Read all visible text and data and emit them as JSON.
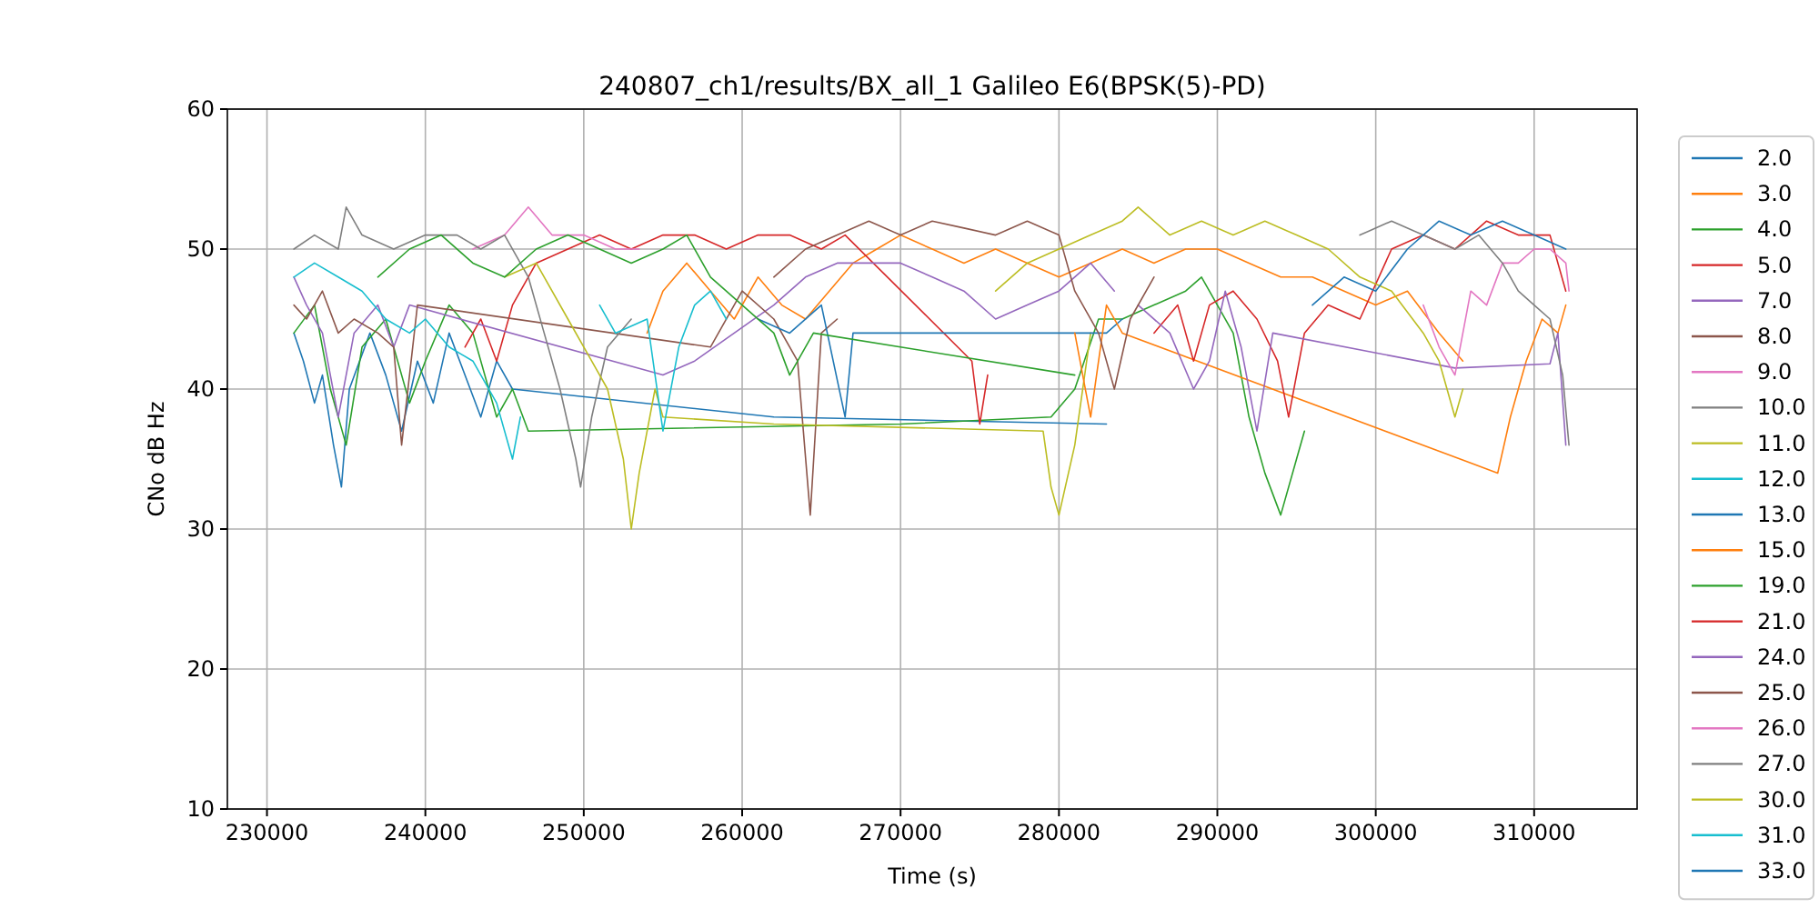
{
  "chart_data": {
    "type": "line",
    "title": "240807_ch1/results/BX_all_1 Galileo E6(BPSK(5)-PD)",
    "xlabel": "Time (s)",
    "ylabel": "CNo dB Hz",
    "xlim": [
      227500,
      316500
    ],
    "xticks": [
      230000,
      240000,
      250000,
      260000,
      270000,
      280000,
      290000,
      300000,
      310000
    ],
    "ylim": [
      10,
      60
    ],
    "yticks": [
      10,
      20,
      30,
      40,
      50,
      60
    ],
    "grid": true,
    "legend": "right",
    "line_style": "solid",
    "marker": "none",
    "series": [
      {
        "name": "2.0",
        "color": "#1f77b4",
        "x": [
          231700,
          232300,
          233000,
          233500,
          234200,
          234700,
          235200,
          236500,
          237500,
          238500,
          239500,
          240500,
          241500,
          243500,
          244500,
          245500,
          262000,
          283000
        ],
        "values": [
          44,
          42,
          39,
          41,
          36,
          33,
          40,
          44,
          41,
          37,
          42,
          39,
          44,
          38,
          42,
          40,
          38,
          37.5
        ]
      },
      {
        "name": "3.0",
        "color": "#ff7f0e",
        "x": [
          254000,
          255000,
          256500,
          258000,
          259500,
          261000,
          262500,
          264000,
          265500,
          267000,
          268500,
          270000,
          272000,
          274000,
          276000,
          278000,
          280000,
          282000,
          284000,
          286000,
          288000,
          290000,
          292000,
          294000,
          296000,
          298000,
          300000,
          302000,
          304000,
          305500
        ],
        "values": [
          44,
          47,
          49,
          47,
          45,
          48,
          46,
          45,
          47,
          49,
          50,
          51,
          50,
          49,
          50,
          49,
          48,
          49,
          50,
          49,
          50,
          50,
          49,
          48,
          48,
          47,
          46,
          47,
          44,
          42
        ]
      },
      {
        "name": "4.0",
        "color": "#2ca02c",
        "x": [
          231700,
          233000,
          234000,
          235000,
          236000,
          237500,
          239000,
          240000,
          241500,
          243000,
          244500,
          245500,
          246500,
          270000,
          279500,
          281000,
          282500,
          284000,
          286000,
          288000,
          289000,
          290000,
          291000,
          292000,
          293000,
          294000,
          295000,
          295500
        ],
        "values": [
          44,
          46,
          40,
          36,
          43,
          45,
          39,
          42,
          46,
          44,
          38,
          40,
          37,
          37.5,
          38,
          40,
          45,
          45,
          46,
          47,
          48,
          46,
          44,
          38,
          34,
          31,
          35,
          37
        ]
      },
      {
        "name": "5.0",
        "color": "#d62728",
        "x": [
          242500,
          243500,
          244500,
          245500,
          247000,
          249000,
          251000,
          253000,
          255000,
          257000,
          259000,
          261000,
          263000,
          265000,
          266500,
          274500,
          275000,
          275500
        ],
        "values": [
          43,
          45,
          42,
          46,
          49,
          50,
          51,
          50,
          51,
          51,
          50,
          51,
          51,
          50,
          51,
          42,
          37.5,
          41
        ]
      },
      {
        "name": "7.0",
        "color": "#9467bd",
        "x": [
          231700,
          232500,
          233500,
          234500,
          235500,
          237000,
          238000,
          239000,
          255000,
          257000,
          262000,
          264000,
          266000,
          268000,
          270000,
          272000,
          274000,
          276000,
          278000,
          280000,
          282000,
          283500
        ],
        "values": [
          48,
          46,
          44,
          38,
          44,
          46,
          43,
          46,
          41,
          42,
          46,
          48,
          49,
          49,
          49,
          48,
          47,
          45,
          46,
          47,
          49,
          47
        ]
      },
      {
        "name": "8.0",
        "color": "#8c564b",
        "x": [
          231700,
          232500,
          233500,
          234500,
          235500,
          237000,
          238000,
          238500,
          239500,
          258000,
          260000,
          262000,
          263500,
          264300,
          265000,
          266000
        ],
        "values": [
          46,
          45,
          47,
          44,
          45,
          44,
          43,
          36,
          46,
          43,
          47,
          45,
          42,
          31,
          44,
          45
        ]
      },
      {
        "name": "9.0",
        "color": "#e377c2",
        "x": [
          243000,
          245000,
          246500,
          248000,
          250000,
          252000,
          253500
        ],
        "values": [
          50,
          51,
          53,
          51,
          51,
          50,
          50
        ]
      },
      {
        "name": "10.0",
        "color": "#7f7f7f",
        "x": [
          231700,
          233000,
          234500,
          235000,
          236000,
          238000,
          240000,
          242000,
          243500,
          245000,
          246500,
          247500,
          248500,
          249500,
          249800,
          250500,
          251500,
          253000
        ],
        "values": [
          50,
          51,
          50,
          53,
          51,
          50,
          51,
          51,
          50,
          51,
          48,
          44,
          40,
          35,
          33,
          38,
          43,
          45
        ]
      },
      {
        "name": "11.0",
        "color": "#bcbd22",
        "x": [
          245000,
          247000,
          249000,
          250500,
          251500,
          252500,
          253000,
          253500,
          254500,
          255000,
          262000,
          279000,
          279500,
          280000,
          281000,
          282000
        ],
        "values": [
          48,
          49,
          45,
          42,
          40,
          35,
          30,
          34,
          40,
          38,
          37.5,
          37,
          33,
          31,
          36,
          44
        ]
      },
      {
        "name": "12.0",
        "color": "#17becf",
        "x": [
          231700,
          233000,
          234500,
          236000,
          237500,
          239000,
          240000,
          241500,
          243000,
          244500,
          245500,
          246000
        ],
        "values": [
          48,
          49,
          48,
          47,
          45,
          44,
          45,
          43,
          42,
          39,
          35,
          38
        ]
      },
      {
        "name": "13.0",
        "color": "#1f77b4",
        "x": [
          261000,
          263000,
          265000,
          266500,
          267000,
          283000,
          284000
        ],
        "values": [
          45,
          44,
          46,
          38,
          44,
          44,
          45
        ]
      },
      {
        "name": "15.0",
        "color": "#ff7f0e",
        "x": [
          281000,
          282000,
          283000,
          284000,
          307700,
          308500,
          309500,
          310500,
          311500,
          312000
        ],
        "values": [
          44,
          38,
          46,
          44,
          34,
          38,
          42,
          45,
          44,
          46
        ]
      },
      {
        "name": "19.0",
        "color": "#2ca02c",
        "x": [
          237000,
          239000,
          241000,
          243000,
          245000,
          247000,
          249000,
          251000,
          253000,
          255000,
          256500,
          258000,
          260000,
          262000,
          263000,
          264500,
          281000
        ],
        "values": [
          48,
          50,
          51,
          49,
          48,
          50,
          51,
          50,
          49,
          50,
          51,
          48,
          46,
          44,
          41,
          44,
          41
        ]
      },
      {
        "name": "21.0",
        "color": "#d62728",
        "x": [
          286000,
          287500,
          288500,
          289500,
          291000,
          292500,
          293800,
          294500,
          295500,
          297000,
          299000,
          301000,
          303000,
          305000,
          307000,
          309000,
          311000,
          312000
        ],
        "values": [
          44,
          46,
          42,
          46,
          47,
          45,
          42,
          38,
          44,
          46,
          45,
          50,
          51,
          50,
          52,
          51,
          51,
          47
        ]
      },
      {
        "name": "24.0",
        "color": "#9467bd",
        "x": [
          285000,
          287000,
          288500,
          289500,
          290500,
          291500,
          292500,
          293500,
          305000,
          311000,
          311500,
          312000
        ],
        "values": [
          46,
          44,
          40,
          42,
          47,
          43,
          37,
          44,
          41.5,
          41.8,
          44,
          36
        ]
      },
      {
        "name": "25.0",
        "color": "#8c564b",
        "x": [
          262000,
          264000,
          266000,
          268000,
          270000,
          272000,
          274000,
          276000,
          278000,
          280000,
          281000,
          282500,
          283500,
          284500,
          286000
        ],
        "values": [
          48,
          50,
          51,
          52,
          51,
          52,
          51.5,
          51,
          52,
          51,
          47,
          44,
          40,
          45,
          48
        ]
      },
      {
        "name": "26.0",
        "color": "#e377c2",
        "x": [
          303000,
          304000,
          305000,
          306000,
          307000,
          308000,
          309000,
          310000,
          311000,
          312000,
          312200
        ],
        "values": [
          46,
          43,
          41,
          47,
          46,
          49,
          49,
          50,
          50,
          49,
          47
        ]
      },
      {
        "name": "27.0",
        "color": "#7f7f7f",
        "x": [
          299000,
          301000,
          303000,
          305000,
          306500,
          308000,
          309000,
          310000,
          311000,
          311800,
          312200
        ],
        "values": [
          51,
          52,
          51,
          50,
          51,
          49,
          47,
          46,
          45,
          41,
          36
        ]
      },
      {
        "name": "30.0",
        "color": "#bcbd22",
        "x": [
          276000,
          278000,
          280000,
          282000,
          284000,
          285000,
          287000,
          289000,
          291000,
          293000,
          295000,
          297000,
          299000,
          301000,
          303000,
          304000,
          305000,
          305500
        ],
        "values": [
          47,
          49,
          50,
          51,
          52,
          53,
          51,
          52,
          51,
          52,
          51,
          50,
          48,
          47,
          44,
          42,
          38,
          40
        ]
      },
      {
        "name": "31.0",
        "color": "#17becf",
        "x": [
          251000,
          252000,
          254000,
          255000,
          256000,
          257000,
          258000,
          259000
        ],
        "values": [
          46,
          44,
          45,
          37,
          43,
          46,
          47,
          45
        ]
      },
      {
        "name": "33.0",
        "color": "#1f77b4",
        "x": [
          296000,
          298000,
          300000,
          302000,
          304000,
          306000,
          308000,
          310000,
          312000
        ],
        "values": [
          46,
          48,
          47,
          50,
          52,
          51,
          52,
          51,
          50
        ]
      }
    ]
  }
}
